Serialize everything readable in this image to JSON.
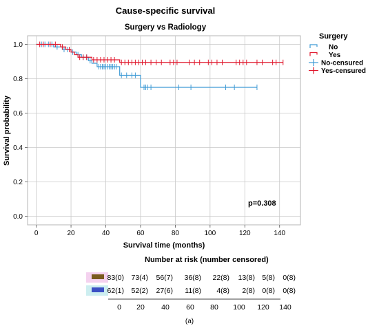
{
  "chart_data": {
    "type": "line",
    "title": "Cause-specific survival",
    "subtitle": "Surgery vs Radiology",
    "xlabel": "Survival time (months)",
    "ylabel": "Survival probability",
    "xlim": [
      -5,
      152
    ],
    "ylim": [
      -0.05,
      1.05
    ],
    "x_ticks": [
      0,
      20,
      40,
      60,
      80,
      100,
      120,
      140
    ],
    "y_ticks": [
      0.0,
      0.2,
      0.4,
      0.6,
      0.8,
      1.0
    ],
    "y_tick_labels": [
      "0.0",
      "0.2",
      "0.4",
      "0.6",
      "0.8",
      "1.0"
    ],
    "grid": true,
    "legend_title": "Surgery",
    "legend_position": "right",
    "annotation": "p=0.308",
    "series": [
      {
        "name": "No",
        "censored_name": "No-censured",
        "color": "#3f9bd5",
        "steps": [
          [
            0,
            1.0
          ],
          [
            10,
            0.985
          ],
          [
            15,
            0.97
          ],
          [
            20,
            0.955
          ],
          [
            23,
            0.94
          ],
          [
            26,
            0.925
          ],
          [
            30,
            0.905
          ],
          [
            32,
            0.89
          ],
          [
            35,
            0.87
          ],
          [
            48,
            0.82
          ],
          [
            60,
            0.75
          ],
          [
            127,
            0.75
          ]
        ],
        "censored": [
          [
            3,
            1.0
          ],
          [
            5,
            1.0
          ],
          [
            7,
            1.0
          ],
          [
            9,
            1.0
          ],
          [
            12,
            0.985
          ],
          [
            16,
            0.97
          ],
          [
            18,
            0.97
          ],
          [
            21,
            0.955
          ],
          [
            24,
            0.94
          ],
          [
            27,
            0.925
          ],
          [
            29,
            0.925
          ],
          [
            31,
            0.905
          ],
          [
            36,
            0.87
          ],
          [
            37,
            0.87
          ],
          [
            38,
            0.87
          ],
          [
            39,
            0.87
          ],
          [
            40,
            0.87
          ],
          [
            41,
            0.87
          ],
          [
            42,
            0.87
          ],
          [
            43,
            0.87
          ],
          [
            44,
            0.87
          ],
          [
            45,
            0.87
          ],
          [
            46,
            0.87
          ],
          [
            49,
            0.82
          ],
          [
            52,
            0.82
          ],
          [
            55,
            0.82
          ],
          [
            57,
            0.82
          ],
          [
            62,
            0.75
          ],
          [
            63,
            0.75
          ],
          [
            64,
            0.75
          ],
          [
            66,
            0.75
          ],
          [
            82,
            0.75
          ],
          [
            89,
            0.75
          ],
          [
            109,
            0.75
          ],
          [
            114,
            0.75
          ],
          [
            127,
            0.75
          ]
        ]
      },
      {
        "name": "Yes",
        "censored_name": "Yes-censured",
        "color": "#e0182d",
        "steps": [
          [
            0,
            1.0
          ],
          [
            14,
            0.985
          ],
          [
            17,
            0.97
          ],
          [
            20,
            0.955
          ],
          [
            22,
            0.94
          ],
          [
            24,
            0.925
          ],
          [
            32,
            0.91
          ],
          [
            48,
            0.895
          ],
          [
            142,
            0.895
          ]
        ],
        "censored": [
          [
            2,
            1.0
          ],
          [
            4,
            1.0
          ],
          [
            8,
            1.0
          ],
          [
            11,
            1.0
          ],
          [
            15,
            0.985
          ],
          [
            19,
            0.97
          ],
          [
            25,
            0.925
          ],
          [
            27,
            0.925
          ],
          [
            29,
            0.925
          ],
          [
            33,
            0.91
          ],
          [
            35,
            0.91
          ],
          [
            37,
            0.91
          ],
          [
            39,
            0.91
          ],
          [
            41,
            0.91
          ],
          [
            43,
            0.91
          ],
          [
            45,
            0.91
          ],
          [
            49,
            0.895
          ],
          [
            51,
            0.895
          ],
          [
            53,
            0.895
          ],
          [
            55,
            0.895
          ],
          [
            57,
            0.895
          ],
          [
            59,
            0.895
          ],
          [
            61,
            0.895
          ],
          [
            63,
            0.895
          ],
          [
            66,
            0.895
          ],
          [
            69,
            0.895
          ],
          [
            72,
            0.895
          ],
          [
            77,
            0.895
          ],
          [
            79,
            0.895
          ],
          [
            81,
            0.895
          ],
          [
            88,
            0.895
          ],
          [
            91,
            0.895
          ],
          [
            94,
            0.895
          ],
          [
            99,
            0.895
          ],
          [
            101,
            0.895
          ],
          [
            104,
            0.895
          ],
          [
            107,
            0.895
          ],
          [
            115,
            0.895
          ],
          [
            117,
            0.895
          ],
          [
            119,
            0.895
          ],
          [
            121,
            0.895
          ],
          [
            127,
            0.895
          ],
          [
            130,
            0.895
          ],
          [
            136,
            0.895
          ],
          [
            138,
            0.895
          ],
          [
            142,
            0.895
          ]
        ]
      }
    ],
    "risk_table": {
      "title": "Number at risk (number censored)",
      "x_values": [
        "0",
        "20",
        "40",
        "60",
        "80",
        "100",
        "120",
        "140"
      ],
      "rows": [
        {
          "color": "#7a5a1e",
          "highlight": "#f4d2ef",
          "values": [
            "83(0)",
            "73(4)",
            "56(7)",
            "36(8)",
            "22(8)",
            "13(8)",
            "5(8)",
            "0(8)"
          ]
        },
        {
          "color": "#3b4fc4",
          "highlight": "#cdeef0",
          "values": [
            "62(1)",
            "52(2)",
            "27(6)",
            "11(8)",
            "4(8)",
            "2(8)",
            "0(8)",
            "0(8)"
          ]
        }
      ]
    },
    "caption": "(a)"
  }
}
